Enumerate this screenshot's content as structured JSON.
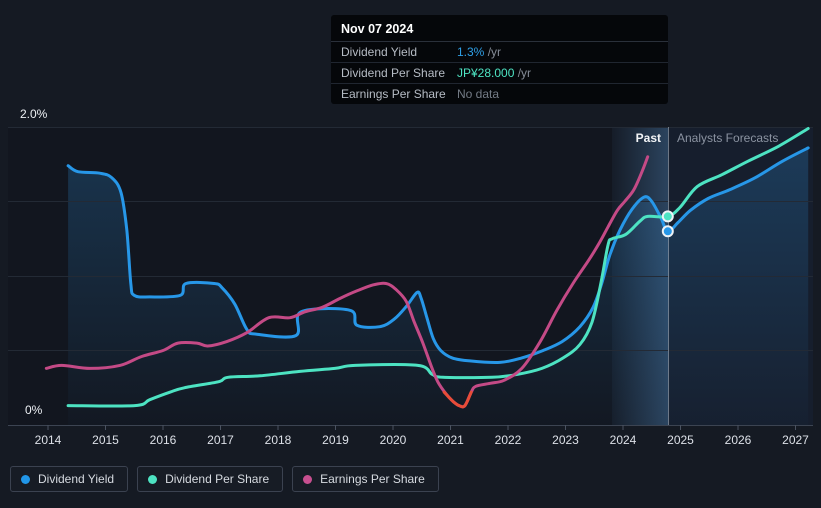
{
  "tooltip": {
    "date": "Nov 07 2024",
    "rows": [
      {
        "label": "Dividend Yield",
        "value": "1.3%",
        "suffix": " /yr",
        "color": "#2f9fe6"
      },
      {
        "label": "Dividend Per Share",
        "value": "JP¥28.000",
        "suffix": " /yr",
        "color": "#4ee4c3"
      },
      {
        "label": "Earnings Per Share",
        "value": "No data",
        "suffix": "",
        "color": "#747b86"
      }
    ]
  },
  "chart": {
    "past_label": "Past",
    "forecast_label": "Analysts Forecasts",
    "y_axis": {
      "top_label": "2.0%",
      "bottom_label": "0%"
    },
    "x_ticks": [
      "2014",
      "2015",
      "2016",
      "2017",
      "2018",
      "2019",
      "2020",
      "2021",
      "2022",
      "2023",
      "2024",
      "2025",
      "2026",
      "2027"
    ]
  },
  "legend": [
    {
      "label": "Dividend Yield",
      "color": "#2196e8"
    },
    {
      "label": "Dividend Per Share",
      "color": "#4de3c2"
    },
    {
      "label": "Earnings Per Share",
      "color": "#c74f8f"
    }
  ],
  "chart_data": {
    "type": "line",
    "title": "Dividend history and forecast",
    "y_axis_unit": "% (dividend yield scale)",
    "y_range_pct": [
      0,
      2.0
    ],
    "gridlines_pct": [
      0,
      0.5,
      1.0,
      1.5,
      2.0
    ],
    "x_range_years": [
      2013.3,
      2027.3
    ],
    "data_start_year": 2014.35,
    "divider_year": 2024.78,
    "highlight_band_years": [
      2023.81,
      2024.78
    ],
    "hover": {
      "date": "Nov 07 2024",
      "dividend_yield_pct": 1.3,
      "dividend_per_share": "JP¥28.000",
      "earnings_per_share": null
    },
    "series": [
      {
        "id": "dividend_yield",
        "name": "Dividend Yield",
        "color": "#2797e8",
        "width": 3,
        "area": true,
        "points": [
          [
            2014.35,
            1.74
          ],
          [
            2014.52,
            1.7
          ],
          [
            2014.9,
            1.69
          ],
          [
            2015.11,
            1.66
          ],
          [
            2015.27,
            1.56
          ],
          [
            2015.37,
            1.31
          ],
          [
            2015.44,
            0.95
          ],
          [
            2015.5,
            0.87
          ],
          [
            2015.77,
            0.86
          ],
          [
            2016.3,
            0.87
          ],
          [
            2016.4,
            0.95
          ],
          [
            2016.89,
            0.95
          ],
          [
            2017.03,
            0.92
          ],
          [
            2017.25,
            0.81
          ],
          [
            2017.46,
            0.64
          ],
          [
            2017.62,
            0.61
          ],
          [
            2018.31,
            0.6
          ],
          [
            2018.4,
            0.76
          ],
          [
            2019.25,
            0.77
          ],
          [
            2019.37,
            0.67
          ],
          [
            2019.77,
            0.66
          ],
          [
            2020.02,
            0.71
          ],
          [
            2020.24,
            0.8
          ],
          [
            2020.42,
            0.89
          ],
          [
            2020.49,
            0.85
          ],
          [
            2020.59,
            0.72
          ],
          [
            2020.7,
            0.58
          ],
          [
            2020.83,
            0.5
          ],
          [
            2021.03,
            0.45
          ],
          [
            2021.34,
            0.43
          ],
          [
            2021.86,
            0.42
          ],
          [
            2022.24,
            0.45
          ],
          [
            2022.61,
            0.5
          ],
          [
            2022.94,
            0.56
          ],
          [
            2023.25,
            0.66
          ],
          [
            2023.48,
            0.79
          ],
          [
            2023.63,
            0.95
          ],
          [
            2023.77,
            1.14
          ],
          [
            2023.95,
            1.31
          ],
          [
            2024.16,
            1.45
          ],
          [
            2024.37,
            1.53
          ],
          [
            2024.5,
            1.5
          ],
          [
            2024.66,
            1.39
          ],
          [
            2024.78,
            1.3
          ],
          [
            2024.96,
            1.36
          ],
          [
            2025.17,
            1.44
          ],
          [
            2025.48,
            1.52
          ],
          [
            2025.86,
            1.58
          ],
          [
            2026.3,
            1.66
          ],
          [
            2026.77,
            1.77
          ],
          [
            2027.22,
            1.86
          ]
        ]
      },
      {
        "id": "dividend_per_share",
        "name": "Dividend Per Share",
        "color": "#4de3c2",
        "width": 3,
        "area": false,
        "points": [
          [
            2014.35,
            0.13
          ],
          [
            2015.51,
            0.13
          ],
          [
            2015.77,
            0.17
          ],
          [
            2016.12,
            0.22
          ],
          [
            2016.37,
            0.25
          ],
          [
            2016.96,
            0.29
          ],
          [
            2017.13,
            0.32
          ],
          [
            2017.69,
            0.33
          ],
          [
            2018.38,
            0.36
          ],
          [
            2018.99,
            0.38
          ],
          [
            2019.34,
            0.4
          ],
          [
            2020.43,
            0.4
          ],
          [
            2020.68,
            0.34
          ],
          [
            2020.87,
            0.32
          ],
          [
            2021.72,
            0.32
          ],
          [
            2022.17,
            0.34
          ],
          [
            2022.59,
            0.38
          ],
          [
            2022.96,
            0.45
          ],
          [
            2023.25,
            0.54
          ],
          [
            2023.46,
            0.69
          ],
          [
            2023.62,
            0.96
          ],
          [
            2023.74,
            1.21
          ],
          [
            2023.81,
            1.25
          ],
          [
            2024.05,
            1.28
          ],
          [
            2024.3,
            1.37
          ],
          [
            2024.43,
            1.4
          ],
          [
            2024.78,
            1.4
          ],
          [
            2024.99,
            1.46
          ],
          [
            2025.29,
            1.6
          ],
          [
            2025.72,
            1.68
          ],
          [
            2026.17,
            1.77
          ],
          [
            2026.7,
            1.87
          ],
          [
            2027.22,
            1.99
          ]
        ]
      },
      {
        "id": "earnings_per_share",
        "name": "Earnings Per Share",
        "color": "#c44a86",
        "width": 3,
        "area": false,
        "points": [
          [
            2013.97,
            0.38
          ],
          [
            2014.24,
            0.4
          ],
          [
            2014.73,
            0.38
          ],
          [
            2015.25,
            0.4
          ],
          [
            2015.63,
            0.46
          ],
          [
            2016.0,
            0.5
          ],
          [
            2016.26,
            0.55
          ],
          [
            2016.59,
            0.55
          ],
          [
            2016.78,
            0.53
          ],
          [
            2017.11,
            0.56
          ],
          [
            2017.46,
            0.62
          ],
          [
            2017.84,
            0.72
          ],
          [
            2018.21,
            0.72
          ],
          [
            2018.47,
            0.76
          ],
          [
            2018.77,
            0.79
          ],
          [
            2019.08,
            0.85
          ],
          [
            2019.37,
            0.9
          ],
          [
            2019.65,
            0.94
          ],
          [
            2019.88,
            0.95
          ],
          [
            2020.05,
            0.91
          ],
          [
            2020.23,
            0.83
          ],
          [
            2020.37,
            0.69
          ],
          [
            2020.52,
            0.55
          ],
          [
            2020.66,
            0.4
          ],
          [
            2020.78,
            0.29
          ],
          [
            2020.92,
            0.21
          ],
          [
            2021.04,
            0.16
          ],
          [
            2021.15,
            0.13
          ],
          [
            2021.25,
            0.13
          ],
          [
            2021.36,
            0.22
          ],
          [
            2021.44,
            0.26
          ],
          [
            2021.69,
            0.28
          ],
          [
            2021.93,
            0.3
          ],
          [
            2022.24,
            0.38
          ],
          [
            2022.56,
            0.56
          ],
          [
            2022.85,
            0.77
          ],
          [
            2023.13,
            0.95
          ],
          [
            2023.41,
            1.11
          ],
          [
            2023.6,
            1.23
          ],
          [
            2023.74,
            1.33
          ],
          [
            2023.9,
            1.44
          ],
          [
            2024.03,
            1.5
          ],
          [
            2024.19,
            1.58
          ],
          [
            2024.33,
            1.7
          ],
          [
            2024.43,
            1.8
          ]
        ]
      },
      {
        "id": "eps_negative",
        "name": "Earnings Per Share (negative period)",
        "color": "#e84c38",
        "width": 3,
        "area": false,
        "points": [
          [
            2020.89,
            0.22
          ],
          [
            2021.04,
            0.16
          ],
          [
            2021.15,
            0.13
          ],
          [
            2021.25,
            0.13
          ],
          [
            2021.36,
            0.22
          ]
        ]
      }
    ],
    "markers": [
      {
        "series": "dividend_per_share",
        "x": 2024.78,
        "y": 1.4,
        "color": "#4de3c2"
      },
      {
        "series": "dividend_yield",
        "x": 2024.78,
        "y": 1.3,
        "color": "#2797e8"
      }
    ],
    "legend_position": "bottom-left",
    "grid": true
  }
}
